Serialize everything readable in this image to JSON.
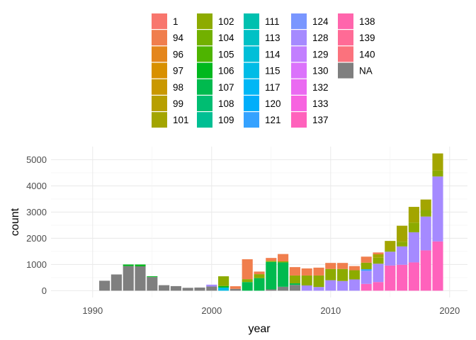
{
  "chart_data": {
    "type": "bar",
    "stacked": true,
    "title": "",
    "xlabel": "year",
    "ylabel": "count",
    "xlim": [
      1986.5,
      2021.5
    ],
    "ylim": [
      -260,
      5500
    ],
    "xticks": [
      1990,
      2000,
      2010,
      2020
    ],
    "yticks": [
      0,
      1000,
      2000,
      3000,
      4000,
      5000
    ],
    "grid": true,
    "legend_position": "top",
    "legend": [
      {
        "name": "1",
        "color": "#F8766D"
      },
      {
        "name": "94",
        "color": "#F07E4D"
      },
      {
        "name": "96",
        "color": "#E4861C"
      },
      {
        "name": "97",
        "color": "#D89000"
      },
      {
        "name": "98",
        "color": "#C99800"
      },
      {
        "name": "99",
        "color": "#B79F00"
      },
      {
        "name": "101",
        "color": "#A3A500"
      },
      {
        "name": "102",
        "color": "#8DAB00"
      },
      {
        "name": "104",
        "color": "#72B000"
      },
      {
        "name": "105",
        "color": "#4EB400"
      },
      {
        "name": "106",
        "color": "#00B81E"
      },
      {
        "name": "107",
        "color": "#00BA4E"
      },
      {
        "name": "108",
        "color": "#00BD72"
      },
      {
        "name": "109",
        "color": "#00BF93"
      },
      {
        "name": "111",
        "color": "#00C0AF"
      },
      {
        "name": "113",
        "color": "#00C1C5"
      },
      {
        "name": "114",
        "color": "#00BFD8"
      },
      {
        "name": "115",
        "color": "#00BCE6"
      },
      {
        "name": "117",
        "color": "#00B7F5"
      },
      {
        "name": "120",
        "color": "#00AEFA"
      },
      {
        "name": "121",
        "color": "#35A2FF"
      },
      {
        "name": "124",
        "color": "#7996FF"
      },
      {
        "name": "128",
        "color": "#A58AFF"
      },
      {
        "name": "129",
        "color": "#C27FFF"
      },
      {
        "name": "130",
        "color": "#DB72FB"
      },
      {
        "name": "132",
        "color": "#EA6AF1"
      },
      {
        "name": "133",
        "color": "#F763E0"
      },
      {
        "name": "137",
        "color": "#FF62BC"
      },
      {
        "name": "138",
        "color": "#FF65AC"
      },
      {
        "name": "139",
        "color": "#FF6B96"
      },
      {
        "name": "140",
        "color": "#FB727D"
      },
      {
        "name": "NA",
        "color": "#7F7F7F"
      }
    ],
    "bars": [
      {
        "year": 1991,
        "segments": [
          {
            "group": "NA",
            "value": 380
          }
        ]
      },
      {
        "year": 1992,
        "segments": [
          {
            "group": "NA",
            "value": 620
          }
        ]
      },
      {
        "year": 1993,
        "segments": [
          {
            "group": "NA",
            "value": 940
          },
          {
            "group": "106",
            "value": 60
          }
        ]
      },
      {
        "year": 1994,
        "segments": [
          {
            "group": "NA",
            "value": 930
          },
          {
            "group": "106",
            "value": 70
          }
        ]
      },
      {
        "year": 1995,
        "segments": [
          {
            "group": "NA",
            "value": 520
          },
          {
            "group": "106",
            "value": 30
          }
        ]
      },
      {
        "year": 1996,
        "segments": [
          {
            "group": "NA",
            "value": 210
          }
        ]
      },
      {
        "year": 1997,
        "segments": [
          {
            "group": "NA",
            "value": 175
          }
        ]
      },
      {
        "year": 1998,
        "segments": [
          {
            "group": "NA",
            "value": 110
          }
        ]
      },
      {
        "year": 1999,
        "segments": [
          {
            "group": "NA",
            "value": 120
          }
        ]
      },
      {
        "year": 2000,
        "segments": [
          {
            "group": "NA",
            "value": 160
          },
          {
            "group": "128",
            "value": 70
          }
        ]
      },
      {
        "year": 2001,
        "segments": [
          {
            "group": "115",
            "value": 120
          },
          {
            "group": "106",
            "value": 60
          },
          {
            "group": "102",
            "value": 370
          }
        ]
      },
      {
        "year": 2002,
        "segments": [
          {
            "group": "NA",
            "value": 70
          },
          {
            "group": "94",
            "value": 100
          }
        ]
      },
      {
        "year": 2003,
        "segments": [
          {
            "group": "107",
            "value": 330
          },
          {
            "group": "102",
            "value": 110
          },
          {
            "group": "94",
            "value": 760
          }
        ]
      },
      {
        "year": 2004,
        "segments": [
          {
            "group": "107",
            "value": 480
          },
          {
            "group": "102",
            "value": 150
          },
          {
            "group": "94",
            "value": 100
          }
        ]
      },
      {
        "year": 2005,
        "segments": [
          {
            "group": "NA",
            "value": 50
          },
          {
            "group": "107",
            "value": 1050
          },
          {
            "group": "102",
            "value": 40
          },
          {
            "group": "94",
            "value": 110
          }
        ]
      },
      {
        "year": 2006,
        "segments": [
          {
            "group": "NA",
            "value": 150
          },
          {
            "group": "107",
            "value": 930
          },
          {
            "group": "102",
            "value": 40
          },
          {
            "group": "94",
            "value": 280
          }
        ]
      },
      {
        "year": 2007,
        "segments": [
          {
            "group": "NA",
            "value": 220
          },
          {
            "group": "107",
            "value": 60
          },
          {
            "group": "102",
            "value": 300
          },
          {
            "group": "94",
            "value": 320
          }
        ]
      },
      {
        "year": 2008,
        "segments": [
          {
            "group": "128",
            "value": 200
          },
          {
            "group": "102",
            "value": 380
          },
          {
            "group": "94",
            "value": 270
          }
        ]
      },
      {
        "year": 2009,
        "segments": [
          {
            "group": "128",
            "value": 140
          },
          {
            "group": "102",
            "value": 440
          },
          {
            "group": "94",
            "value": 300
          }
        ]
      },
      {
        "year": 2010,
        "segments": [
          {
            "group": "128",
            "value": 400
          },
          {
            "group": "102",
            "value": 430
          },
          {
            "group": "94",
            "value": 230
          }
        ]
      },
      {
        "year": 2011,
        "segments": [
          {
            "group": "128",
            "value": 370
          },
          {
            "group": "102",
            "value": 460
          },
          {
            "group": "94",
            "value": 230
          }
        ]
      },
      {
        "year": 2012,
        "segments": [
          {
            "group": "128",
            "value": 430
          },
          {
            "group": "102",
            "value": 350
          },
          {
            "group": "94",
            "value": 160
          }
        ]
      },
      {
        "year": 2013,
        "segments": [
          {
            "group": "137",
            "value": 260
          },
          {
            "group": "128",
            "value": 500
          },
          {
            "group": "121",
            "value": 60
          },
          {
            "group": "102",
            "value": 250
          },
          {
            "group": "94",
            "value": 230
          }
        ]
      },
      {
        "year": 2014,
        "segments": [
          {
            "group": "137",
            "value": 330
          },
          {
            "group": "128",
            "value": 700
          },
          {
            "group": "102",
            "value": 230
          },
          {
            "group": "101",
            "value": 130
          },
          {
            "group": "94",
            "value": 70
          }
        ]
      },
      {
        "year": 2015,
        "segments": [
          {
            "group": "137",
            "value": 960
          },
          {
            "group": "128",
            "value": 530
          },
          {
            "group": "102",
            "value": 60
          },
          {
            "group": "101",
            "value": 350
          }
        ]
      },
      {
        "year": 2016,
        "segments": [
          {
            "group": "137",
            "value": 990
          },
          {
            "group": "128",
            "value": 700
          },
          {
            "group": "102",
            "value": 180
          },
          {
            "group": "101",
            "value": 610
          }
        ]
      },
      {
        "year": 2017,
        "segments": [
          {
            "group": "137",
            "value": 1080
          },
          {
            "group": "128",
            "value": 1150
          },
          {
            "group": "102",
            "value": 370
          },
          {
            "group": "101",
            "value": 600
          }
        ]
      },
      {
        "year": 2018,
        "segments": [
          {
            "group": "137",
            "value": 1540
          },
          {
            "group": "128",
            "value": 1290
          },
          {
            "group": "102",
            "value": 250
          },
          {
            "group": "101",
            "value": 400
          }
        ]
      },
      {
        "year": 2019,
        "segments": [
          {
            "group": "137",
            "value": 1880
          },
          {
            "group": "128",
            "value": 2480
          },
          {
            "group": "102",
            "value": 230
          },
          {
            "group": "101",
            "value": 650
          }
        ]
      }
    ]
  }
}
